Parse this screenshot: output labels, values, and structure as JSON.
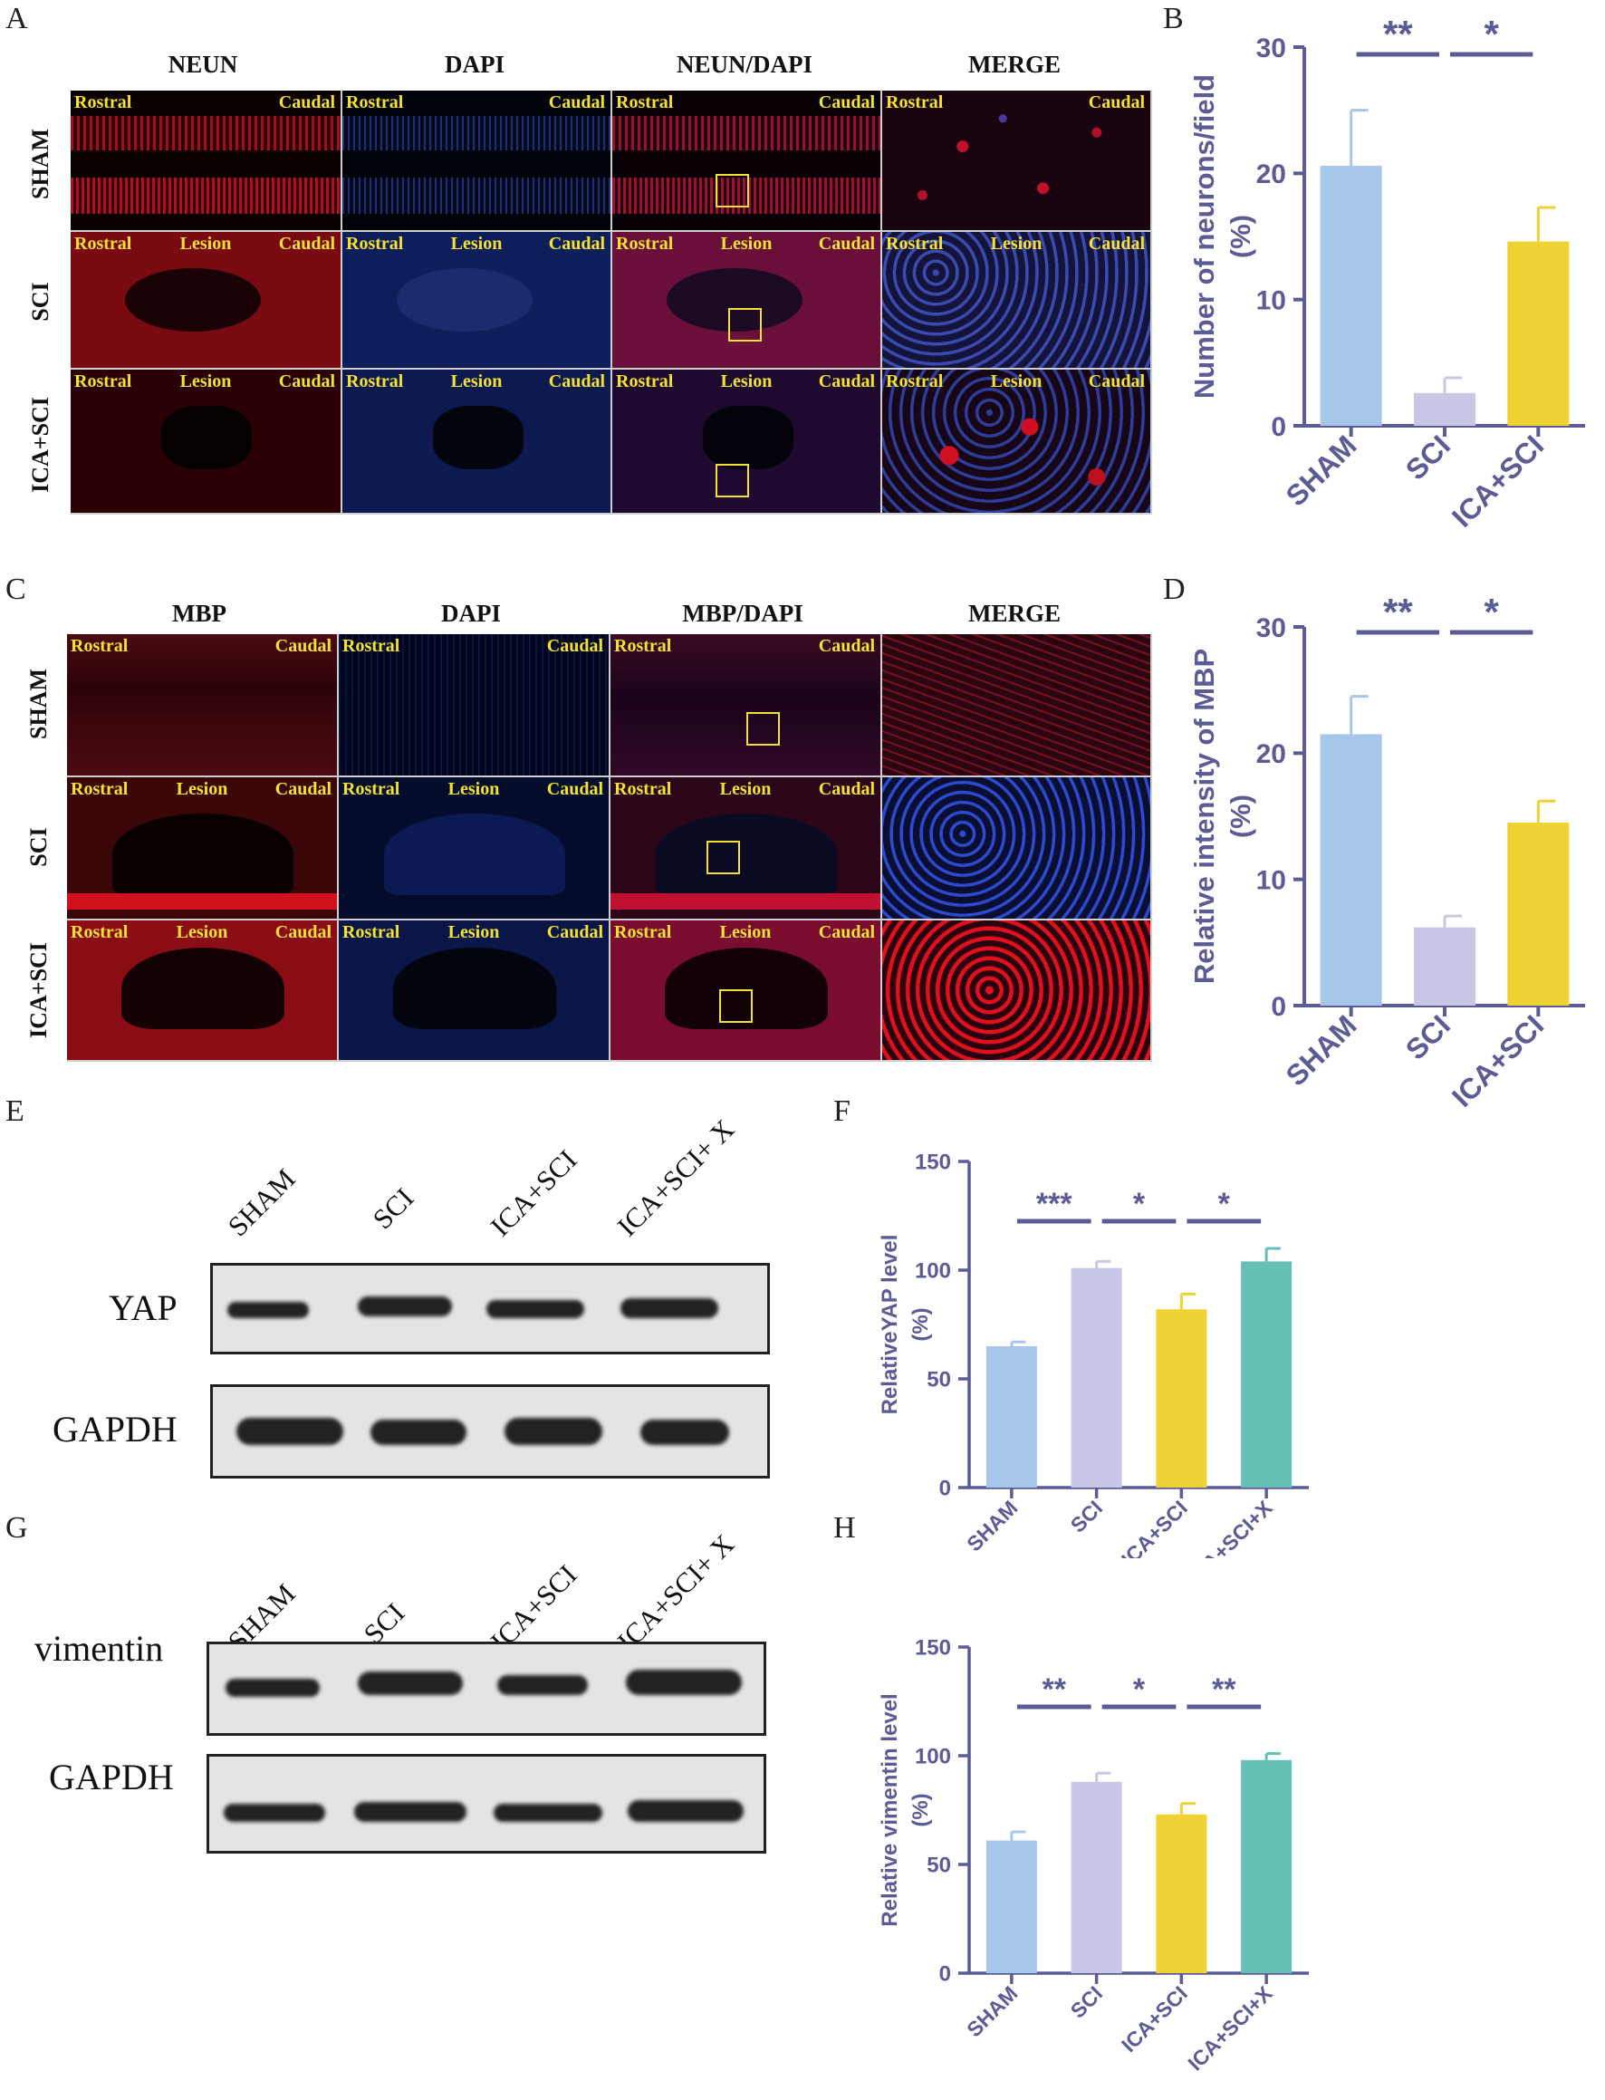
{
  "colors": {
    "axis": "#5b5c96",
    "sham": "#a7c7ea",
    "sci": "#c9c7e6",
    "ica_sci": "#f1d234",
    "ica_sci_x": "#64bfb4",
    "tile_label": "#f4e233"
  },
  "panel_letters": {
    "a": "A",
    "b": "B",
    "c": "C",
    "d": "D",
    "e": "E",
    "f": "F",
    "g": "G",
    "h": "H"
  },
  "panel_a": {
    "columns": [
      "NEUN",
      "DAPI",
      "NEUN/DAPI",
      "MERGE"
    ],
    "rows": [
      "SHAM",
      "SCI",
      "ICA+SCI"
    ],
    "tile_labels": {
      "rostral": "Rostral",
      "caudal": "Caudal",
      "lesion": "Lesion"
    }
  },
  "panel_c": {
    "columns": [
      "MBP",
      "DAPI",
      "MBP/DAPI",
      "MERGE"
    ],
    "rows": [
      "SHAM",
      "SCI",
      "ICA+SCI"
    ],
    "tile_labels": {
      "rostral": "Rostral",
      "caudal": "Caudal",
      "lesion": "Lesion"
    }
  },
  "blot_e": {
    "lanes": [
      "SHAM",
      "SCI",
      "ICA+SCI",
      "ICA+SCI+ X"
    ],
    "proteins": [
      "YAP",
      "GAPDH"
    ]
  },
  "blot_g": {
    "lanes": [
      "SHAM",
      "SCI",
      "ICA+SCI",
      "ICA+SCI+ X"
    ],
    "proteins": [
      "vimentin",
      "GAPDH"
    ]
  },
  "chart_data": [
    {
      "panel": "B",
      "type": "bar",
      "categories": [
        "SHAM",
        "SCI",
        "ICA+SCI"
      ],
      "values": [
        20.6,
        2.6,
        14.6
      ],
      "errors": [
        4.4,
        1.2,
        2.7
      ],
      "ylabel": "Number of neurons/field",
      "ylabel_unit": "(%)",
      "ylim": [
        0,
        30
      ],
      "yticks": [
        0,
        10,
        20,
        30
      ],
      "significance": [
        {
          "from": 0,
          "to": 1,
          "label": "**"
        },
        {
          "from": 1,
          "to": 2,
          "label": "*"
        }
      ]
    },
    {
      "panel": "D",
      "type": "bar",
      "categories": [
        "SHAM",
        "SCI",
        "ICA+SCI"
      ],
      "values": [
        21.5,
        6.2,
        14.5
      ],
      "errors": [
        3.0,
        0.9,
        1.7
      ],
      "ylabel": "Relative intensity of MBP",
      "ylabel_unit": "(%)",
      "ylim": [
        0,
        30
      ],
      "yticks": [
        0,
        10,
        20,
        30
      ],
      "significance": [
        {
          "from": 0,
          "to": 1,
          "label": "**"
        },
        {
          "from": 1,
          "to": 2,
          "label": "*"
        }
      ]
    },
    {
      "panel": "F",
      "type": "bar",
      "categories": [
        "SHAM",
        "SCI",
        "ICA+SCI",
        "ICA+SCI+X"
      ],
      "values": [
        65,
        101,
        82,
        104
      ],
      "errors": [
        2,
        3,
        7,
        6
      ],
      "ylabel": "RelativeYAP level",
      "ylabel_unit": "(%)",
      "ylim": [
        0,
        150
      ],
      "yticks": [
        0,
        50,
        100,
        150
      ],
      "significance": [
        {
          "from": 0,
          "to": 1,
          "label": "***"
        },
        {
          "from": 1,
          "to": 2,
          "label": "*"
        },
        {
          "from": 2,
          "to": 3,
          "label": "*"
        }
      ]
    },
    {
      "panel": "H",
      "type": "bar",
      "categories": [
        "SHAM",
        "SCI",
        "ICA+SCI",
        "ICA+SCI+X"
      ],
      "values": [
        61,
        88,
        73,
        98
      ],
      "errors": [
        4,
        4,
        5,
        3
      ],
      "ylabel": "Relative vimentin level",
      "ylabel_unit": "(%)",
      "ylim": [
        0,
        150
      ],
      "yticks": [
        0,
        50,
        100,
        150
      ],
      "significance": [
        {
          "from": 0,
          "to": 1,
          "label": "**"
        },
        {
          "from": 1,
          "to": 2,
          "label": "*"
        },
        {
          "from": 2,
          "to": 3,
          "label": "**"
        }
      ]
    }
  ]
}
